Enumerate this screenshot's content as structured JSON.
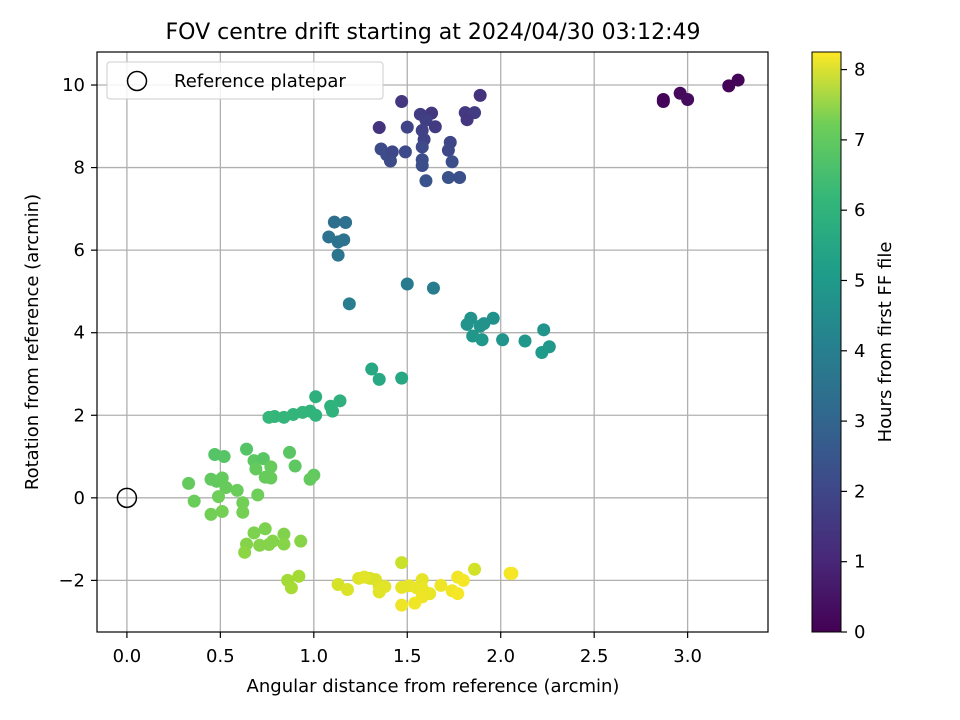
{
  "chart_data": {
    "type": "scatter",
    "title": "FOV centre drift starting at 2024/04/30 03:12:49",
    "xlabel": "Angular distance from reference (arcmin)",
    "ylabel": "Rotation from reference (arcmin)",
    "xlim": [
      -0.16,
      3.43
    ],
    "ylim": [
      -3.25,
      10.8
    ],
    "xticks": [
      "0.0",
      "0.5",
      "1.0",
      "1.5",
      "2.0",
      "2.5",
      "3.0"
    ],
    "xtick_values": [
      0,
      0.5,
      1,
      1.5,
      2,
      2.5,
      3
    ],
    "yticks": [
      "−2",
      "0",
      "2",
      "4",
      "6",
      "8",
      "10"
    ],
    "ytick_values": [
      -2,
      0,
      2,
      4,
      6,
      8,
      10
    ],
    "grid": true,
    "legend": {
      "placement": "top-left",
      "entries": [
        "Reference platepar"
      ]
    },
    "colorbar": {
      "label": "Hours from first FF file",
      "colormap": "viridis",
      "range": [
        0,
        8.25
      ],
      "ticks": [
        "0",
        "1",
        "2",
        "3",
        "4",
        "5",
        "6",
        "7",
        "8"
      ],
      "tick_values": [
        0,
        1,
        2,
        3,
        4,
        5,
        6,
        7,
        8
      ]
    },
    "reference_point": {
      "x": 0,
      "y": 0
    },
    "points": [
      {
        "x": 2.87,
        "y": 9.6,
        "h": 0.15
      },
      {
        "x": 2.87,
        "y": 9.65,
        "h": 0.1
      },
      {
        "x": 2.96,
        "y": 9.8,
        "h": 0.2
      },
      {
        "x": 3.0,
        "y": 9.65,
        "h": 0.25
      },
      {
        "x": 3.22,
        "y": 9.98,
        "h": 0.05
      },
      {
        "x": 3.27,
        "y": 10.12,
        "h": 0.1
      },
      {
        "x": 1.47,
        "y": 9.6,
        "h": 1.3
      },
      {
        "x": 1.89,
        "y": 9.75,
        "h": 1.2
      },
      {
        "x": 1.81,
        "y": 9.33,
        "h": 1.4
      },
      {
        "x": 1.86,
        "y": 9.33,
        "h": 1.5
      },
      {
        "x": 1.82,
        "y": 9.16,
        "h": 1.3
      },
      {
        "x": 1.57,
        "y": 9.29,
        "h": 1.5
      },
      {
        "x": 1.63,
        "y": 9.32,
        "h": 1.35
      },
      {
        "x": 1.6,
        "y": 9.15,
        "h": 1.55
      },
      {
        "x": 1.65,
        "y": 8.99,
        "h": 1.45
      },
      {
        "x": 1.5,
        "y": 8.98,
        "h": 1.7
      },
      {
        "x": 1.58,
        "y": 8.9,
        "h": 1.6
      },
      {
        "x": 1.59,
        "y": 8.68,
        "h": 1.65
      },
      {
        "x": 1.35,
        "y": 8.97,
        "h": 1.25
      },
      {
        "x": 1.73,
        "y": 8.61,
        "h": 1.75
      },
      {
        "x": 1.72,
        "y": 8.42,
        "h": 1.8
      },
      {
        "x": 1.58,
        "y": 8.5,
        "h": 1.85
      },
      {
        "x": 1.36,
        "y": 8.45,
        "h": 1.9
      },
      {
        "x": 1.39,
        "y": 8.31,
        "h": 1.95
      },
      {
        "x": 1.42,
        "y": 8.38,
        "h": 1.8
      },
      {
        "x": 1.49,
        "y": 8.38,
        "h": 1.85
      },
      {
        "x": 1.41,
        "y": 8.16,
        "h": 1.9
      },
      {
        "x": 1.58,
        "y": 8.19,
        "h": 1.95
      },
      {
        "x": 1.58,
        "y": 8.05,
        "h": 2.0
      },
      {
        "x": 1.74,
        "y": 8.14,
        "h": 2.0
      },
      {
        "x": 1.72,
        "y": 7.76,
        "h": 2.1
      },
      {
        "x": 1.78,
        "y": 7.76,
        "h": 2.05
      },
      {
        "x": 1.6,
        "y": 7.68,
        "h": 2.15
      },
      {
        "x": 1.11,
        "y": 6.68,
        "h": 3.0
      },
      {
        "x": 1.17,
        "y": 6.67,
        "h": 3.05
      },
      {
        "x": 1.08,
        "y": 6.32,
        "h": 3.1
      },
      {
        "x": 1.13,
        "y": 6.2,
        "h": 3.15
      },
      {
        "x": 1.16,
        "y": 6.25,
        "h": 3.1
      },
      {
        "x": 1.13,
        "y": 5.88,
        "h": 3.2
      },
      {
        "x": 1.19,
        "y": 4.7,
        "h": 3.5
      },
      {
        "x": 1.5,
        "y": 5.18,
        "h": 3.4
      },
      {
        "x": 1.64,
        "y": 5.08,
        "h": 3.45
      },
      {
        "x": 1.84,
        "y": 4.35,
        "h": 4.2
      },
      {
        "x": 1.96,
        "y": 4.35,
        "h": 4.15
      },
      {
        "x": 1.82,
        "y": 4.2,
        "h": 4.25
      },
      {
        "x": 1.89,
        "y": 4.16,
        "h": 4.3
      },
      {
        "x": 1.91,
        "y": 4.22,
        "h": 4.2
      },
      {
        "x": 1.85,
        "y": 3.92,
        "h": 4.35
      },
      {
        "x": 1.9,
        "y": 3.83,
        "h": 4.4
      },
      {
        "x": 2.01,
        "y": 3.83,
        "h": 4.3
      },
      {
        "x": 2.13,
        "y": 3.8,
        "h": 4.35
      },
      {
        "x": 2.23,
        "y": 4.07,
        "h": 4.25
      },
      {
        "x": 2.26,
        "y": 3.66,
        "h": 4.4
      },
      {
        "x": 2.22,
        "y": 3.52,
        "h": 4.45
      },
      {
        "x": 1.31,
        "y": 3.12,
        "h": 4.9
      },
      {
        "x": 1.35,
        "y": 2.87,
        "h": 4.95
      },
      {
        "x": 1.47,
        "y": 2.9,
        "h": 4.9
      },
      {
        "x": 1.01,
        "y": 2.45,
        "h": 5.2
      },
      {
        "x": 1.14,
        "y": 2.35,
        "h": 5.25
      },
      {
        "x": 1.09,
        "y": 2.22,
        "h": 5.3
      },
      {
        "x": 1.1,
        "y": 2.1,
        "h": 5.3
      },
      {
        "x": 0.98,
        "y": 2.1,
        "h": 5.35
      },
      {
        "x": 1.01,
        "y": 2.0,
        "h": 5.35
      },
      {
        "x": 0.94,
        "y": 2.07,
        "h": 5.4
      },
      {
        "x": 0.89,
        "y": 2.02,
        "h": 5.4
      },
      {
        "x": 0.84,
        "y": 1.95,
        "h": 5.45
      },
      {
        "x": 0.79,
        "y": 1.97,
        "h": 5.45
      },
      {
        "x": 0.76,
        "y": 1.95,
        "h": 5.5
      },
      {
        "x": 0.64,
        "y": 1.18,
        "h": 6.0
      },
      {
        "x": 0.47,
        "y": 1.05,
        "h": 6.0
      },
      {
        "x": 0.52,
        "y": 1.0,
        "h": 6.05
      },
      {
        "x": 0.87,
        "y": 1.1,
        "h": 6.1
      },
      {
        "x": 0.68,
        "y": 0.9,
        "h": 6.15
      },
      {
        "x": 0.73,
        "y": 0.95,
        "h": 6.1
      },
      {
        "x": 0.9,
        "y": 0.77,
        "h": 6.15
      },
      {
        "x": 0.77,
        "y": 0.75,
        "h": 6.3
      },
      {
        "x": 0.69,
        "y": 0.7,
        "h": 6.25
      },
      {
        "x": 1.0,
        "y": 0.55,
        "h": 6.2
      },
      {
        "x": 0.98,
        "y": 0.45,
        "h": 6.25
      },
      {
        "x": 0.74,
        "y": 0.5,
        "h": 6.3
      },
      {
        "x": 0.77,
        "y": 0.48,
        "h": 6.3
      },
      {
        "x": 0.45,
        "y": 0.45,
        "h": 6.2
      },
      {
        "x": 0.48,
        "y": 0.4,
        "h": 6.2
      },
      {
        "x": 0.51,
        "y": 0.48,
        "h": 6.25
      },
      {
        "x": 0.33,
        "y": 0.35,
        "h": 6.25
      },
      {
        "x": 0.53,
        "y": 0.25,
        "h": 6.3
      },
      {
        "x": 0.59,
        "y": 0.18,
        "h": 6.35
      },
      {
        "x": 0.49,
        "y": 0.03,
        "h": 6.4
      },
      {
        "x": 0.7,
        "y": 0.07,
        "h": 6.4
      },
      {
        "x": 0.36,
        "y": -0.08,
        "h": 6.35
      },
      {
        "x": 0.62,
        "y": -0.12,
        "h": 6.45
      },
      {
        "x": 0.45,
        "y": -0.4,
        "h": 6.45
      },
      {
        "x": 0.51,
        "y": -0.33,
        "h": 6.5
      },
      {
        "x": 0.62,
        "y": -0.35,
        "h": 6.5
      },
      {
        "x": 0.74,
        "y": -0.75,
        "h": 6.6
      },
      {
        "x": 0.68,
        "y": -0.85,
        "h": 6.6
      },
      {
        "x": 0.84,
        "y": -0.88,
        "h": 6.65
      },
      {
        "x": 0.64,
        "y": -1.12,
        "h": 6.7
      },
      {
        "x": 0.71,
        "y": -1.15,
        "h": 6.7
      },
      {
        "x": 0.76,
        "y": -1.13,
        "h": 6.7
      },
      {
        "x": 0.78,
        "y": -1.05,
        "h": 6.7
      },
      {
        "x": 0.84,
        "y": -1.12,
        "h": 6.75
      },
      {
        "x": 0.93,
        "y": -1.05,
        "h": 6.75
      },
      {
        "x": 0.63,
        "y": -1.32,
        "h": 6.8
      },
      {
        "x": 0.86,
        "y": -2.0,
        "h": 7.1
      },
      {
        "x": 0.92,
        "y": -1.9,
        "h": 7.1
      },
      {
        "x": 0.88,
        "y": -2.18,
        "h": 7.15
      },
      {
        "x": 1.47,
        "y": -1.57,
        "h": 7.6
      },
      {
        "x": 1.86,
        "y": -1.73,
        "h": 7.7
      },
      {
        "x": 2.05,
        "y": -1.83,
        "h": 8.1
      },
      {
        "x": 2.06,
        "y": -1.83,
        "h": 8.15
      },
      {
        "x": 1.3,
        "y": -1.95,
        "h": 7.75
      },
      {
        "x": 1.33,
        "y": -1.98,
        "h": 7.8
      },
      {
        "x": 1.13,
        "y": -2.1,
        "h": 7.75
      },
      {
        "x": 1.18,
        "y": -2.22,
        "h": 7.8
      },
      {
        "x": 1.24,
        "y": -1.95,
        "h": 7.85
      },
      {
        "x": 1.27,
        "y": -1.92,
        "h": 7.9
      },
      {
        "x": 1.35,
        "y": -2.14,
        "h": 7.85
      },
      {
        "x": 1.35,
        "y": -2.28,
        "h": 7.9
      },
      {
        "x": 1.38,
        "y": -2.15,
        "h": 7.9
      },
      {
        "x": 1.47,
        "y": -2.17,
        "h": 7.95
      },
      {
        "x": 1.51,
        "y": -2.13,
        "h": 7.95
      },
      {
        "x": 1.55,
        "y": -2.18,
        "h": 8.0
      },
      {
        "x": 1.58,
        "y": -1.98,
        "h": 7.95
      },
      {
        "x": 1.58,
        "y": -2.2,
        "h": 8.0
      },
      {
        "x": 1.62,
        "y": -2.32,
        "h": 8.0
      },
      {
        "x": 1.58,
        "y": -2.4,
        "h": 8.05
      },
      {
        "x": 1.47,
        "y": -2.6,
        "h": 8.05
      },
      {
        "x": 1.54,
        "y": -2.55,
        "h": 8.1
      },
      {
        "x": 1.68,
        "y": -2.12,
        "h": 8.05
      },
      {
        "x": 1.74,
        "y": -2.25,
        "h": 8.1
      },
      {
        "x": 1.77,
        "y": -1.92,
        "h": 8.1
      },
      {
        "x": 1.8,
        "y": -2.0,
        "h": 8.15
      },
      {
        "x": 1.77,
        "y": -2.32,
        "h": 8.15
      }
    ]
  }
}
